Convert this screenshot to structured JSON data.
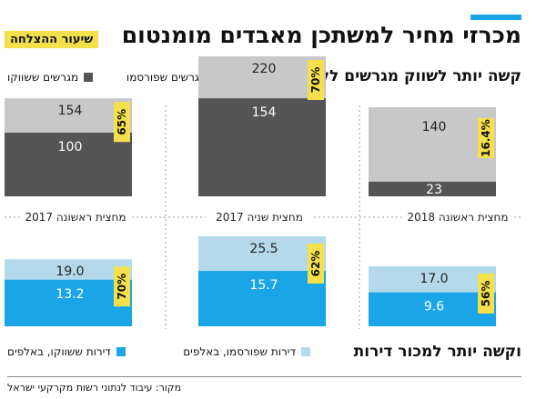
{
  "header": {
    "title": "מכרזי מחיר למשתכן מאבדים מומנטום",
    "badge": "שיעור ההצלחה"
  },
  "source": "מקור: עיבוד לנתוני רשות מקרקעי ישראל",
  "colors": {
    "accent": "#1aa5e6",
    "land_published": "#c8c8c8",
    "land_marketed": "#555555",
    "apt_published": "#b3d9ea",
    "apt_marketed": "#1aa5e6",
    "rate_badge": "#f4e04d"
  },
  "chart_data": [
    {
      "type": "bar",
      "title": "קשה יותר לשווק מגרשים לקבלנים",
      "legend": [
        {
          "name": "מגרשים ששווקו",
          "color": "#555555"
        },
        {
          "name": "מגרשים שפורסמו",
          "color": "#c8c8c8"
        }
      ],
      "categories": [
        "מחצית ראשונה 2018",
        "מחצית שניה 2017",
        "מחצית ראשונה 2017"
      ],
      "series": [
        {
          "name": "מגרשים שפורסמו",
          "values": [
            140,
            220,
            154
          ]
        },
        {
          "name": "מגרשים ששווקו",
          "values": [
            23,
            154,
            100
          ]
        }
      ],
      "success_rate": [
        "16.4%",
        "70%",
        "65%"
      ],
      "ylim": [
        0,
        220
      ]
    },
    {
      "type": "bar",
      "title": "וקשה יותר למכור דירות",
      "legend": [
        {
          "name": "דירות ששווקו, באלפים",
          "color": "#1aa5e6"
        },
        {
          "name": "דירות שפורסמו, באלפים",
          "color": "#b3d9ea"
        }
      ],
      "categories": [
        "מחצית ראשונה 2018",
        "מחצית שניה 2017",
        "מחצית ראשונה 2017"
      ],
      "series": [
        {
          "name": "דירות שפורסמו, באלפים",
          "values": [
            17.0,
            25.5,
            19.0
          ]
        },
        {
          "name": "דירות ששווקו, באלפים",
          "values": [
            9.6,
            15.7,
            13.2
          ]
        }
      ],
      "success_rate": [
        "56%",
        "62%",
        "70%"
      ],
      "ylim": [
        0,
        25.5
      ]
    }
  ]
}
